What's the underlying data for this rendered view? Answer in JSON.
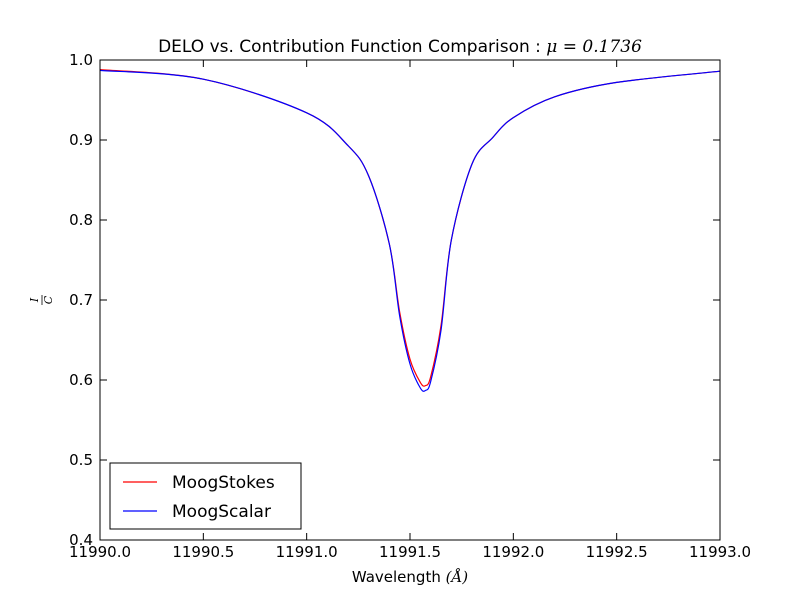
{
  "chart_data": {
    "type": "line",
    "title": "DELO vs. Contribution Function Comparison : ",
    "title_math": "μ = 0.1736",
    "xlabel": "Wavelength",
    "xlabel_unit": "(Å)",
    "ylabel_num": "I",
    "ylabel_den": "C",
    "xlim": [
      11990.0,
      11993.0
    ],
    "ylim": [
      0.4,
      1.0
    ],
    "xticks": [
      11990.0,
      11990.5,
      11991.0,
      11991.5,
      11992.0,
      11992.5,
      11993.0
    ],
    "xtick_labels": [
      "11990.0",
      "11990.5",
      "11991.0",
      "11991.5",
      "11992.0",
      "11992.5",
      "11993.0"
    ],
    "yticks": [
      0.4,
      0.5,
      0.6,
      0.7,
      0.8,
      0.9,
      1.0
    ],
    "ytick_labels": [
      "0.4",
      "0.5",
      "0.6",
      "0.7",
      "0.8",
      "0.9",
      "1.0"
    ],
    "grid": false,
    "legend_position": "lower-left",
    "series": [
      {
        "name": "MoogStokes",
        "color": "#ff0000",
        "x": [
          11990.0,
          11990.5,
          11991.0,
          11991.2,
          11991.3,
          11991.4,
          11991.45,
          11991.5,
          11991.55,
          11991.575,
          11991.6,
          11991.65,
          11991.7,
          11991.8,
          11991.9,
          11992.0,
          11992.2,
          11992.5,
          11993.0
        ],
        "y": [
          0.988,
          0.976,
          0.934,
          0.893,
          0.855,
          0.77,
          0.685,
          0.626,
          0.597,
          0.593,
          0.604,
          0.668,
          0.775,
          0.87,
          0.903,
          0.928,
          0.954,
          0.972,
          0.986
        ]
      },
      {
        "name": "MoogScalar",
        "color": "#0000ff",
        "x": [
          11990.0,
          11990.5,
          11991.0,
          11991.2,
          11991.3,
          11991.4,
          11991.45,
          11991.5,
          11991.55,
          11991.575,
          11991.6,
          11991.65,
          11991.7,
          11991.8,
          11991.9,
          11992.0,
          11992.2,
          11992.5,
          11993.0
        ],
        "y": [
          0.987,
          0.976,
          0.934,
          0.893,
          0.855,
          0.77,
          0.68,
          0.62,
          0.59,
          0.587,
          0.598,
          0.662,
          0.775,
          0.87,
          0.903,
          0.928,
          0.954,
          0.972,
          0.986
        ]
      }
    ]
  }
}
